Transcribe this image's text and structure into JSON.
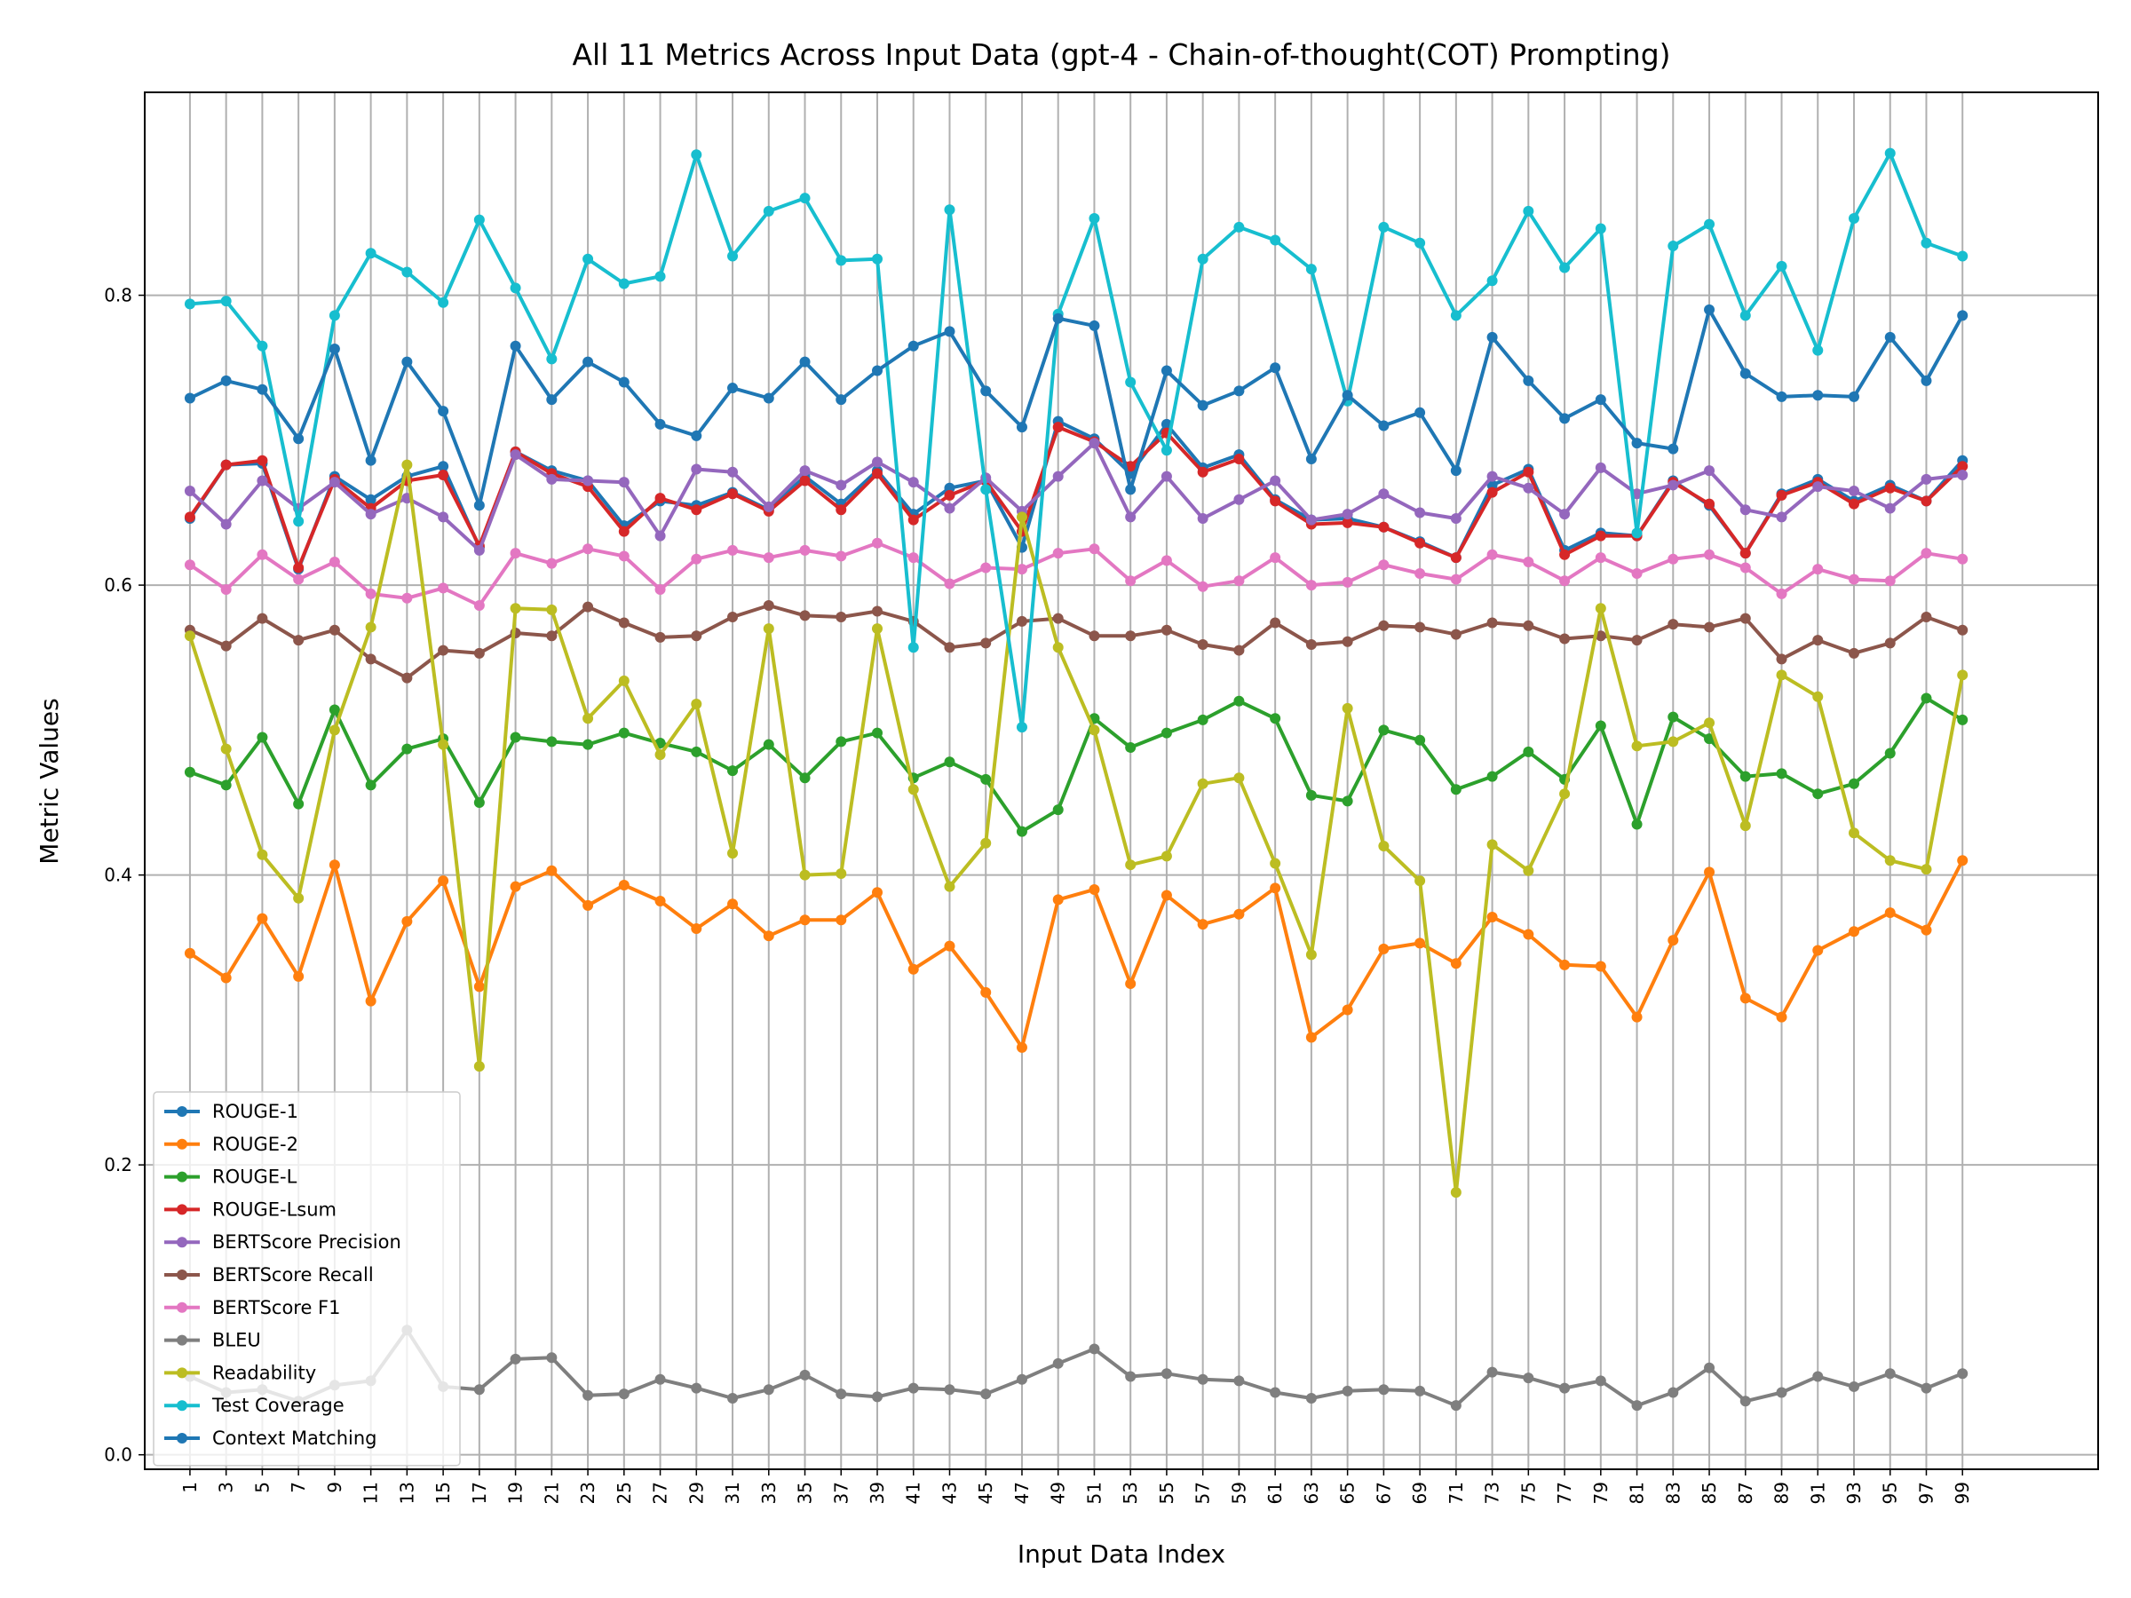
{
  "chart_data": {
    "type": "line",
    "title": "All 11 Metrics Across Input Data (gpt-4 - Chain-of-thought(COT) Prompting)",
    "xlabel": "Input Data Index",
    "ylabel": "Metric Values",
    "x": [
      1,
      3,
      5,
      7,
      9,
      11,
      13,
      15,
      17,
      19,
      21,
      23,
      25,
      27,
      29,
      31,
      33,
      35,
      37,
      39,
      41,
      43,
      45,
      47,
      49,
      51,
      53,
      55,
      57,
      59,
      61,
      63,
      65,
      67,
      69,
      71,
      73,
      75,
      77,
      79,
      81,
      83,
      85,
      87,
      89,
      91,
      93,
      95,
      97,
      99
    ],
    "xlim": [
      -1.5,
      106.5
    ],
    "ylim": [
      -0.01,
      0.94
    ],
    "y_ticks": [
      0.0,
      0.2,
      0.4,
      0.6,
      0.8
    ],
    "y_tick_labels": [
      "0.0",
      "0.2",
      "0.4",
      "0.6",
      "0.8"
    ],
    "x_tick_labels": [
      "1",
      "3",
      "5",
      "7",
      "9",
      "11",
      "13",
      "15",
      "17",
      "19",
      "21",
      "23",
      "25",
      "27",
      "29",
      "31",
      "33",
      "35",
      "37",
      "39",
      "41",
      "43",
      "45",
      "47",
      "49",
      "51",
      "53",
      "55",
      "57",
      "59",
      "61",
      "63",
      "65",
      "67",
      "69",
      "71",
      "73",
      "75",
      "77",
      "79",
      "81",
      "83",
      "85",
      "87",
      "89",
      "91",
      "93",
      "95",
      "97",
      "99"
    ],
    "grid": true,
    "legend_position": "lower-left",
    "series": [
      {
        "name": "ROUGE-1",
        "color": "#1f77b4",
        "values": [
          0.646,
          0.683,
          0.684,
          0.611,
          0.675,
          0.659,
          0.675,
          0.682,
          0.626,
          0.692,
          0.679,
          0.672,
          0.641,
          0.658,
          0.655,
          0.664,
          0.652,
          0.675,
          0.656,
          0.679,
          0.649,
          0.667,
          0.672,
          0.626,
          0.713,
          0.701,
          0.677,
          0.711,
          0.681,
          0.69,
          0.659,
          0.645,
          0.646,
          0.64,
          0.63,
          0.619,
          0.669,
          0.68,
          0.624,
          0.636,
          0.634,
          0.672,
          0.655,
          0.622,
          0.663,
          0.673,
          0.658,
          0.669,
          0.658,
          0.686
        ]
      },
      {
        "name": "ROUGE-2",
        "color": "#ff7f0e",
        "values": [
          0.346,
          0.329,
          0.37,
          0.33,
          0.407,
          0.313,
          0.368,
          0.396,
          0.323,
          0.392,
          0.403,
          0.379,
          0.393,
          0.382,
          0.363,
          0.38,
          0.358,
          0.369,
          0.369,
          0.388,
          0.335,
          0.351,
          0.319,
          0.281,
          0.383,
          0.39,
          0.325,
          0.386,
          0.366,
          0.373,
          0.391,
          0.288,
          0.307,
          0.349,
          0.353,
          0.339,
          0.371,
          0.359,
          0.338,
          0.337,
          0.302,
          0.355,
          0.402,
          0.315,
          0.302,
          0.348,
          0.361,
          0.374,
          0.362,
          0.41
        ]
      },
      {
        "name": "ROUGE-L",
        "color": "#2ca02c",
        "values": [
          0.471,
          0.462,
          0.495,
          0.449,
          0.514,
          0.462,
          0.487,
          0.494,
          0.45,
          0.495,
          0.492,
          0.49,
          0.498,
          0.491,
          0.485,
          0.472,
          0.49,
          0.467,
          0.492,
          0.498,
          0.467,
          0.478,
          0.466,
          0.43,
          0.445,
          0.508,
          0.488,
          0.498,
          0.507,
          0.52,
          0.508,
          0.455,
          0.451,
          0.5,
          0.493,
          0.459,
          0.468,
          0.485,
          0.466,
          0.503,
          0.435,
          0.509,
          0.494,
          0.468,
          0.47,
          0.456,
          0.463,
          0.484,
          0.522,
          0.507
        ]
      },
      {
        "name": "ROUGE-Lsum",
        "color": "#d62728",
        "values": [
          0.647,
          0.683,
          0.686,
          0.612,
          0.673,
          0.653,
          0.672,
          0.676,
          0.627,
          0.692,
          0.677,
          0.668,
          0.637,
          0.66,
          0.652,
          0.663,
          0.651,
          0.672,
          0.652,
          0.677,
          0.645,
          0.662,
          0.672,
          0.637,
          0.709,
          0.699,
          0.682,
          0.705,
          0.678,
          0.687,
          0.658,
          0.642,
          0.643,
          0.64,
          0.629,
          0.619,
          0.664,
          0.678,
          0.621,
          0.634,
          0.634,
          0.671,
          0.656,
          0.622,
          0.662,
          0.671,
          0.656,
          0.667,
          0.658,
          0.682
        ]
      },
      {
        "name": "BERTScore Precision",
        "color": "#9467bd",
        "values": [
          0.665,
          0.642,
          0.672,
          0.653,
          0.671,
          0.649,
          0.66,
          0.647,
          0.624,
          0.69,
          0.673,
          0.672,
          0.671,
          0.634,
          0.68,
          0.678,
          0.654,
          0.679,
          0.669,
          0.685,
          0.671,
          0.653,
          0.674,
          0.651,
          0.675,
          0.698,
          0.647,
          0.675,
          0.646,
          0.659,
          0.672,
          0.645,
          0.649,
          0.663,
          0.65,
          0.646,
          0.675,
          0.667,
          0.649,
          0.681,
          0.663,
          0.669,
          0.679,
          0.652,
          0.647,
          0.668,
          0.665,
          0.653,
          0.673,
          0.676
        ]
      },
      {
        "name": "BERTScore Recall",
        "color": "#8c564b",
        "values": [
          0.569,
          0.558,
          0.577,
          0.562,
          0.569,
          0.549,
          0.536,
          0.555,
          0.553,
          0.567,
          0.565,
          0.585,
          0.574,
          0.564,
          0.565,
          0.578,
          0.586,
          0.579,
          0.578,
          0.582,
          0.575,
          0.557,
          0.56,
          0.575,
          0.577,
          0.565,
          0.565,
          0.569,
          0.559,
          0.555,
          0.574,
          0.559,
          0.561,
          0.572,
          0.571,
          0.566,
          0.574,
          0.572,
          0.563,
          0.565,
          0.562,
          0.573,
          0.571,
          0.577,
          0.549,
          0.562,
          0.553,
          0.56,
          0.578,
          0.569
        ]
      },
      {
        "name": "BERTScore F1",
        "color": "#e377c2",
        "values": [
          0.614,
          0.597,
          0.621,
          0.604,
          0.616,
          0.594,
          0.591,
          0.598,
          0.586,
          0.622,
          0.615,
          0.625,
          0.62,
          0.597,
          0.618,
          0.624,
          0.619,
          0.624,
          0.62,
          0.629,
          0.619,
          0.601,
          0.612,
          0.611,
          0.622,
          0.625,
          0.603,
          0.617,
          0.599,
          0.603,
          0.619,
          0.6,
          0.602,
          0.614,
          0.608,
          0.604,
          0.621,
          0.616,
          0.603,
          0.619,
          0.608,
          0.618,
          0.621,
          0.612,
          0.594,
          0.611,
          0.604,
          0.603,
          0.622,
          0.618
        ]
      },
      {
        "name": "BLEU",
        "color": "#7f7f7f",
        "values": [
          0.054,
          0.043,
          0.045,
          0.037,
          0.048,
          0.051,
          0.086,
          0.047,
          0.045,
          0.066,
          0.067,
          0.041,
          0.042,
          0.052,
          0.046,
          0.039,
          0.045,
          0.055,
          0.042,
          0.04,
          0.046,
          0.045,
          0.042,
          0.052,
          0.063,
          0.073,
          0.054,
          0.056,
          0.052,
          0.051,
          0.043,
          0.039,
          0.044,
          0.045,
          0.044,
          0.034,
          0.057,
          0.053,
          0.046,
          0.051,
          0.034,
          0.043,
          0.06,
          0.037,
          0.043,
          0.054,
          0.047,
          0.056,
          0.046,
          0.056
        ]
      },
      {
        "name": "Readability",
        "color": "#bcbd22",
        "values": [
          0.565,
          0.487,
          0.414,
          0.384,
          0.5,
          0.571,
          0.683,
          0.49,
          0.268,
          0.584,
          0.583,
          0.508,
          0.534,
          0.483,
          0.518,
          0.415,
          0.57,
          0.4,
          0.401,
          0.57,
          0.459,
          0.392,
          0.422,
          0.647,
          0.557,
          0.5,
          0.407,
          0.413,
          0.463,
          0.467,
          0.408,
          0.345,
          0.515,
          0.42,
          0.396,
          0.181,
          0.421,
          0.403,
          0.456,
          0.584,
          0.489,
          0.492,
          0.505,
          0.434,
          0.538,
          0.523,
          0.429,
          0.41,
          0.404,
          0.538
        ]
      },
      {
        "name": "Test Coverage",
        "color": "#17becf",
        "values": [
          0.794,
          0.796,
          0.765,
          0.644,
          0.786,
          0.829,
          0.816,
          0.795,
          0.852,
          0.805,
          0.756,
          0.825,
          0.808,
          0.813,
          0.897,
          0.827,
          0.858,
          0.867,
          0.824,
          0.825,
          0.557,
          0.859,
          0.666,
          0.502,
          0.787,
          0.853,
          0.74,
          0.693,
          0.825,
          0.847,
          0.838,
          0.818,
          0.727,
          0.847,
          0.836,
          0.786,
          0.81,
          0.858,
          0.819,
          0.846,
          0.636,
          0.834,
          0.849,
          0.786,
          0.82,
          0.762,
          0.853,
          0.898,
          0.836,
          0.827
        ]
      },
      {
        "name": "Context Matching",
        "color": "#1f77b4",
        "values": [
          0.729,
          0.741,
          0.735,
          0.701,
          0.763,
          0.686,
          0.754,
          0.72,
          0.655,
          0.765,
          0.728,
          0.754,
          0.74,
          0.711,
          0.703,
          0.736,
          0.729,
          0.754,
          0.728,
          0.748,
          0.765,
          0.775,
          0.734,
          0.709,
          0.784,
          0.779,
          0.666,
          0.748,
          0.724,
          0.734,
          0.75,
          0.687,
          0.731,
          0.71,
          0.719,
          0.679,
          0.771,
          0.741,
          0.715,
          0.728,
          0.698,
          0.694,
          0.79,
          0.746,
          0.73,
          0.731,
          0.73,
          0.771,
          0.741,
          0.786
        ]
      }
    ]
  }
}
